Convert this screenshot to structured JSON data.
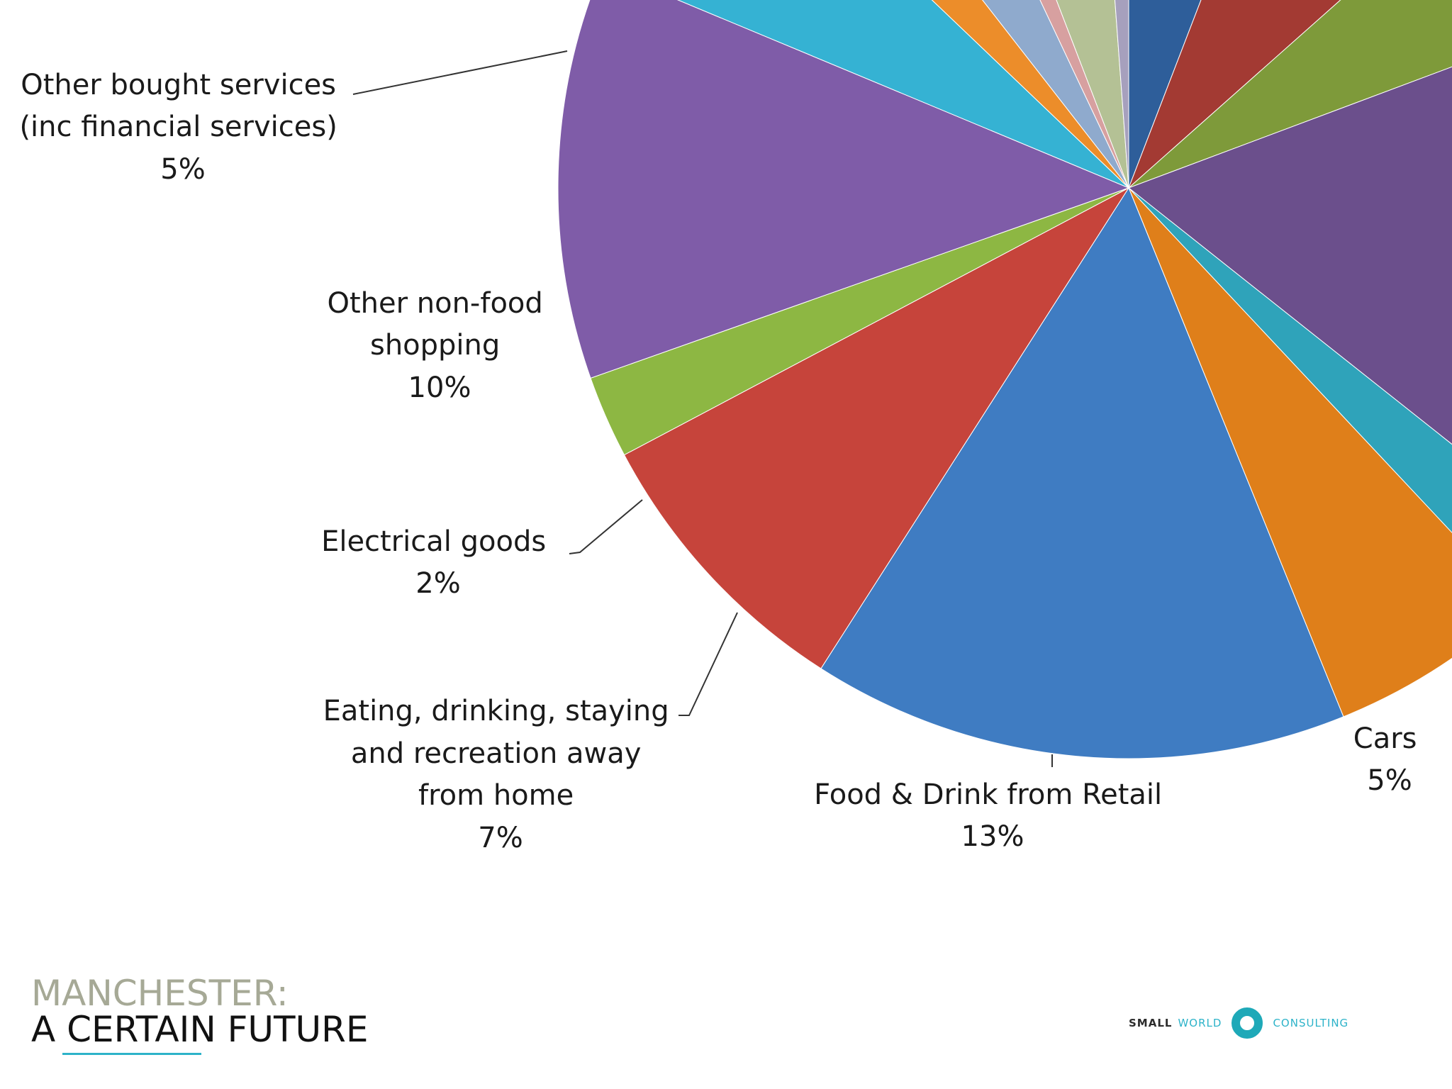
{
  "chart_data": {
    "type": "pie",
    "slices": [
      {
        "label": "",
        "pct": null,
        "share": 5.0,
        "color": "#2e5e9a"
      },
      {
        "label": "",
        "pct": null,
        "share": 6.5,
        "color": "#a33a33"
      },
      {
        "label": "",
        "pct": null,
        "share": 5.0,
        "color": "#7e9a3a"
      },
      {
        "label": "",
        "pct": null,
        "share": 14.0,
        "color": "#6b4f8c"
      },
      {
        "label": "",
        "pct": null,
        "share": 2.0,
        "color": "#2fa3ba"
      },
      {
        "label": "Cars",
        "pct": "5%",
        "share": 5.0,
        "color": "#df7f1a"
      },
      {
        "label": "Food & Drink from Retail",
        "pct": "13%",
        "share": 13.0,
        "color": "#3f7cc2"
      },
      {
        "label": "Eating, drinking, staying and recreation away from home",
        "pct": "7%",
        "share": 7.0,
        "color": "#c6443b"
      },
      {
        "label": "Electrical goods",
        "pct": "2%",
        "share": 2.0,
        "color": "#8db743"
      },
      {
        "label": "Other non-food shopping",
        "pct": "10%",
        "share": 10.0,
        "color": "#7f5ca8"
      },
      {
        "label": "Other bought services (inc financial services)",
        "pct": "5%",
        "share": 5.0,
        "color": "#35b2d3"
      },
      {
        "label": "",
        "pct": null,
        "share": 2.0,
        "color": "#ec8d2a"
      },
      {
        "label": "",
        "pct": null,
        "share": 3.0,
        "color": "#8faacd"
      },
      {
        "label": "",
        "pct": null,
        "share": 1.0,
        "color": "#d7a0a0"
      },
      {
        "label": "",
        "pct": null,
        "share": 4.0,
        "color": "#b4c195"
      },
      {
        "label": "",
        "pct": null,
        "share": 1.0,
        "color": "#a6a0bd"
      }
    ],
    "labels_text": {
      "other_bought_services": [
        "Other bought services",
        "(inc financial services)",
        "5%"
      ],
      "other_non_food": [
        "Other non-food",
        "shopping",
        "10%"
      ],
      "electrical_goods": [
        "Electrical goods",
        "2%"
      ],
      "eating_drinking": [
        "Eating, drinking, staying",
        "and recreation away",
        "from home",
        "7%"
      ],
      "food_drink": [
        "Food & Drink from Retail",
        "13%"
      ],
      "cars": [
        "Cars",
        "5%"
      ]
    }
  },
  "branding": {
    "title_line1": "MANCHESTER:",
    "title_line2": "A CERTAIN FUTURE",
    "consultancy_part1": "SMALL",
    "consultancy_part2": "WORLD",
    "consultancy_part3": "CONSULTING",
    "accent_color": "#2db3c9"
  }
}
